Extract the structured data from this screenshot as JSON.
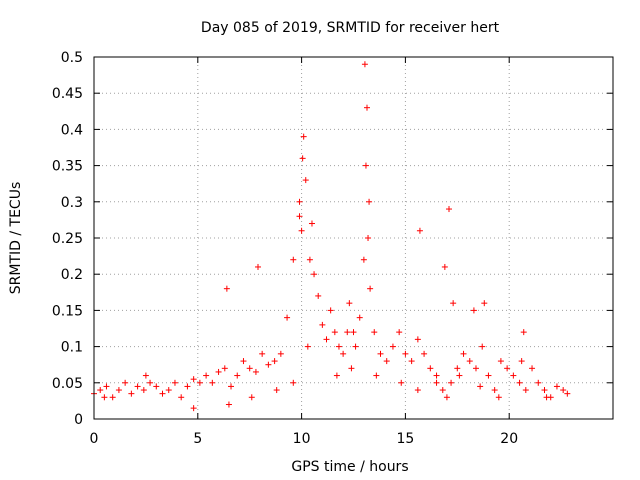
{
  "chart_data": {
    "type": "scatter",
    "title": "Day 085 of 2019, SRMTID for receiver hert",
    "xlabel": "GPS time / hours",
    "ylabel": "SRMTID / TECUs",
    "xlim": [
      0,
      25
    ],
    "ylim": [
      0,
      0.5
    ],
    "xticks": [
      0,
      5,
      10,
      15,
      20
    ],
    "xtick_labels": [
      "0",
      "5",
      "10",
      "15",
      "20"
    ],
    "yticks": [
      0,
      0.05,
      0.1,
      0.15,
      0.2,
      0.25,
      0.3,
      0.35,
      0.4,
      0.45,
      0.5
    ],
    "ytick_labels": [
      "0",
      "0.05",
      "0.1",
      "0.15",
      "0.2",
      "0.25",
      "0.3",
      "0.35",
      "0.4",
      "0.45",
      "0.5"
    ],
    "grid": true,
    "marker": "+",
    "series": [
      {
        "name": "SRMTID",
        "color": "#ff0000",
        "x": [
          0.0,
          0.3,
          0.6,
          0.9,
          1.2,
          1.5,
          1.8,
          2.1,
          2.4,
          2.7,
          3.0,
          3.3,
          3.6,
          3.9,
          4.2,
          4.5,
          4.8,
          5.1,
          5.4,
          5.7,
          6.0,
          6.3,
          6.6,
          6.9,
          7.2,
          7.5,
          7.8,
          8.1,
          8.4,
          8.7,
          9.0,
          9.3,
          9.6,
          9.9,
          10.0,
          10.1,
          10.2,
          10.4,
          10.6,
          10.8,
          11.0,
          11.2,
          11.4,
          11.6,
          11.8,
          12.0,
          12.2,
          12.4,
          12.6,
          12.8,
          13.0,
          13.05,
          13.1,
          13.2,
          13.3,
          13.5,
          13.8,
          14.1,
          14.4,
          14.7,
          15.0,
          15.3,
          15.6,
          15.9,
          16.2,
          16.5,
          16.8,
          17.0,
          17.2,
          17.5,
          17.8,
          18.1,
          18.4,
          18.7,
          19.0,
          19.3,
          19.6,
          19.9,
          20.2,
          20.5,
          20.8,
          21.1,
          21.4,
          21.7,
          22.0,
          22.3,
          22.6,
          22.8,
          0.5,
          2.5,
          4.8,
          6.5,
          7.6,
          8.8,
          9.6,
          10.3,
          11.7,
          12.5,
          13.6,
          14.8,
          15.6,
          16.5,
          17.6,
          18.6,
          19.5,
          20.6,
          21.8,
          6.4,
          7.9,
          9.9,
          10.05,
          10.5,
          12.3,
          13.15,
          13.25,
          15.7,
          16.9,
          17.1,
          17.3,
          18.3,
          18.8,
          20.7
        ],
        "y": [
          0.035,
          0.04,
          0.045,
          0.03,
          0.04,
          0.05,
          0.035,
          0.045,
          0.04,
          0.05,
          0.045,
          0.035,
          0.04,
          0.05,
          0.03,
          0.045,
          0.055,
          0.05,
          0.06,
          0.05,
          0.065,
          0.07,
          0.045,
          0.06,
          0.08,
          0.07,
          0.065,
          0.09,
          0.075,
          0.08,
          0.09,
          0.14,
          0.22,
          0.3,
          0.26,
          0.39,
          0.33,
          0.22,
          0.2,
          0.17,
          0.13,
          0.11,
          0.15,
          0.12,
          0.1,
          0.09,
          0.12,
          0.07,
          0.1,
          0.14,
          0.22,
          0.49,
          0.35,
          0.25,
          0.18,
          0.12,
          0.09,
          0.08,
          0.1,
          0.12,
          0.09,
          0.08,
          0.11,
          0.09,
          0.07,
          0.06,
          0.04,
          0.03,
          0.05,
          0.07,
          0.09,
          0.08,
          0.07,
          0.1,
          0.06,
          0.04,
          0.08,
          0.07,
          0.06,
          0.05,
          0.04,
          0.07,
          0.05,
          0.04,
          0.03,
          0.045,
          0.04,
          0.035,
          0.03,
          0.06,
          0.015,
          0.02,
          0.03,
          0.04,
          0.05,
          0.1,
          0.06,
          0.12,
          0.06,
          0.05,
          0.04,
          0.05,
          0.06,
          0.045,
          0.03,
          0.08,
          0.03,
          0.18,
          0.21,
          0.28,
          0.36,
          0.27,
          0.16,
          0.43,
          0.3,
          0.26,
          0.21,
          0.29,
          0.16,
          0.15,
          0.16,
          0.12
        ]
      }
    ]
  }
}
